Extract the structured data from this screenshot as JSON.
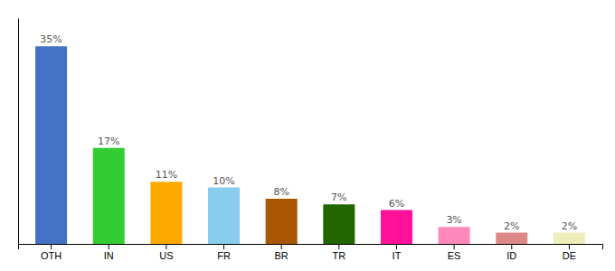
{
  "chart_data": {
    "type": "bar",
    "categories": [
      "OTH",
      "IN",
      "US",
      "FR",
      "BR",
      "TR",
      "IT",
      "ES",
      "ID",
      "DE"
    ],
    "values": [
      35,
      17,
      11,
      10,
      8,
      7,
      6,
      3,
      2,
      2
    ],
    "value_labels": [
      "35%",
      "17%",
      "11%",
      "10%",
      "8%",
      "7%",
      "6%",
      "3%",
      "2%",
      "2%"
    ],
    "colors": [
      "#4472c4",
      "#33cc33",
      "#ffaa00",
      "#88ccee",
      "#aa5500",
      "#226600",
      "#ff1199",
      "#ff88bb",
      "#dd8888",
      "#eeeebb"
    ],
    "data_labels": true,
    "ylim": [
      0,
      40
    ],
    "tick_labels": "x",
    "grid": false
  }
}
